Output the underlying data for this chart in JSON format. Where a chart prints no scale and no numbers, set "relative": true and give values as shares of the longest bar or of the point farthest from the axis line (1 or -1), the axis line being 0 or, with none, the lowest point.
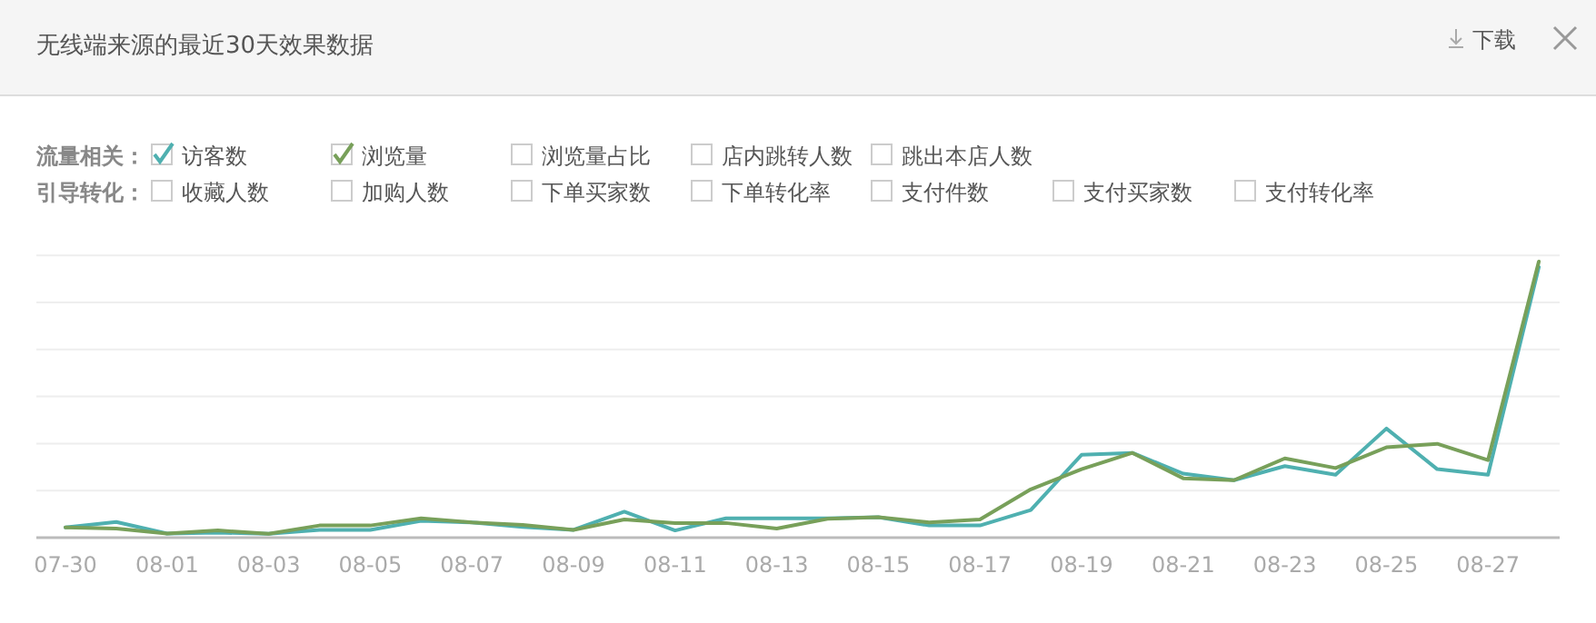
{
  "chart_data": {
    "type": "line",
    "title": "无线端来源的最近30天效果数据",
    "relative": true,
    "grid": "y",
    "legend": "top left",
    "marker": "none",
    "line_style": "solid",
    "annotations": [
      "下载",
      "流量相关：",
      "浏览量占比",
      "店内跳转人数",
      "跳出本店人数",
      "引导转化：",
      "收藏人数",
      "加购人数",
      "下单买家数",
      "下单转化率",
      "支付件数",
      "支付买家数",
      "支付转化率"
    ],
    "categories": [
      "07-30",
      null,
      "08-01",
      null,
      "08-03",
      null,
      "08-05",
      null,
      "08-07",
      null,
      "08-09",
      null,
      "08-11",
      null,
      "08-13",
      null,
      "08-15",
      null,
      "08-17",
      null,
      "08-19",
      null,
      "08-21",
      null,
      "08-23",
      null,
      "08-25",
      null,
      "08-27",
      null
    ],
    "series": [
      {
        "name": "访客数",
        "color": "#4fb0b0",
        "values": [
          0.037,
          0.057,
          0.015,
          0.018,
          0.014,
          0.028,
          0.028,
          0.061,
          0.055,
          0.039,
          0.028,
          0.094,
          0.026,
          0.07,
          0.07,
          0.07,
          0.074,
          0.044,
          0.044,
          0.1,
          0.3,
          0.307,
          0.232,
          0.208,
          0.259,
          0.228,
          0.395,
          0.248,
          0.228,
          0.98
        ]
      },
      {
        "name": "浏览量",
        "color": "#78a05a",
        "values": [
          0.037,
          0.033,
          0.015,
          0.026,
          0.014,
          0.044,
          0.044,
          0.07,
          0.055,
          0.046,
          0.028,
          0.066,
          0.053,
          0.053,
          0.033,
          0.068,
          0.074,
          0.055,
          0.066,
          0.175,
          0.248,
          0.307,
          0.215,
          0.208,
          0.287,
          0.252,
          0.327,
          0.34,
          0.281,
          1.0
        ]
      }
    ]
  }
}
